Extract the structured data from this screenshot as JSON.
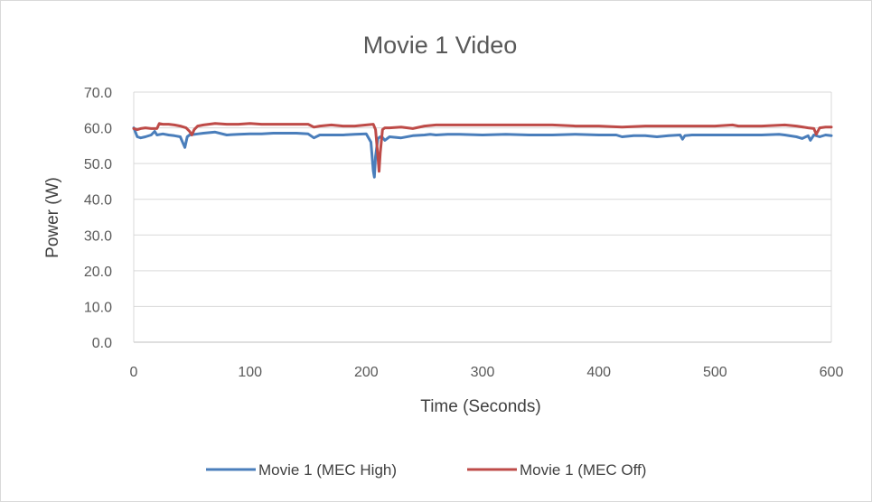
{
  "chart_data": {
    "type": "line",
    "title": "Movie 1 Video",
    "xlabel": "Time (Seconds)",
    "ylabel": "Power (W)",
    "xlim": [
      0,
      600
    ],
    "ylim": [
      0,
      70
    ],
    "xticks": [
      0,
      100,
      200,
      300,
      400,
      500,
      600
    ],
    "xtick_labels": [
      "0",
      "100",
      "200",
      "300",
      "400",
      "500",
      "600"
    ],
    "yticks": [
      0,
      10,
      20,
      30,
      40,
      50,
      60,
      70
    ],
    "ytick_labels": [
      "0.0",
      "10.0",
      "20.0",
      "30.0",
      "40.0",
      "50.0",
      "60.0",
      "70.0"
    ],
    "grid": "horizontal",
    "legend_position": "bottom",
    "series": [
      {
        "name": "Movie 1 (MEC High)",
        "color": "#4a7ebb",
        "x": [
          0,
          3,
          6,
          10,
          15,
          18,
          20,
          25,
          30,
          35,
          40,
          42,
          44,
          46,
          48,
          55,
          60,
          70,
          80,
          90,
          100,
          110,
          120,
          130,
          140,
          150,
          155,
          160,
          170,
          180,
          190,
          200,
          204,
          206,
          207,
          208,
          210,
          212,
          214,
          216,
          220,
          230,
          240,
          250,
          255,
          260,
          270,
          280,
          300,
          320,
          340,
          360,
          380,
          400,
          415,
          420,
          430,
          440,
          450,
          460,
          470,
          472,
          474,
          480,
          500,
          520,
          540,
          555,
          560,
          570,
          575,
          580,
          582,
          585,
          590,
          595,
          600
        ],
        "y": [
          60.0,
          57.5,
          57.2,
          57.5,
          58.0,
          59.0,
          58.0,
          58.3,
          58.0,
          57.8,
          57.5,
          56.0,
          54.5,
          57.5,
          58.0,
          58.3,
          58.5,
          58.8,
          58.0,
          58.2,
          58.3,
          58.3,
          58.5,
          58.5,
          58.5,
          58.3,
          57.2,
          58.0,
          58.0,
          58.0,
          58.2,
          58.3,
          56.0,
          48.0,
          46.2,
          52.0,
          57.0,
          57.5,
          57.3,
          56.5,
          57.5,
          57.2,
          57.8,
          58.0,
          58.2,
          58.0,
          58.2,
          58.2,
          58.0,
          58.2,
          58.0,
          58.0,
          58.2,
          58.0,
          58.0,
          57.5,
          57.8,
          57.8,
          57.5,
          57.8,
          58.0,
          56.8,
          57.8,
          58.0,
          58.0,
          58.0,
          58.0,
          58.2,
          58.0,
          57.5,
          57.0,
          57.8,
          56.5,
          58.0,
          57.5,
          58.0,
          57.8
        ]
      },
      {
        "name": "Movie 1 (MEC Off)",
        "color": "#be4b48",
        "x": [
          0,
          3,
          6,
          10,
          15,
          20,
          22,
          25,
          30,
          35,
          40,
          45,
          48,
          50,
          52,
          55,
          60,
          70,
          80,
          90,
          100,
          110,
          120,
          130,
          140,
          150,
          155,
          160,
          170,
          180,
          190,
          200,
          206,
          208,
          210,
          211,
          212,
          214,
          216,
          220,
          230,
          240,
          250,
          260,
          280,
          300,
          320,
          340,
          360,
          380,
          400,
          420,
          440,
          460,
          480,
          500,
          515,
          520,
          540,
          560,
          570,
          580,
          585,
          587,
          590,
          595,
          600
        ],
        "y": [
          59.8,
          59.5,
          59.8,
          60.0,
          59.8,
          59.8,
          61.2,
          61.0,
          61.0,
          60.8,
          60.5,
          60.0,
          59.0,
          58.0,
          59.5,
          60.5,
          60.8,
          61.2,
          61.0,
          61.0,
          61.2,
          61.0,
          61.0,
          61.0,
          61.0,
          61.0,
          60.2,
          60.5,
          60.8,
          60.5,
          60.5,
          60.8,
          61.0,
          59.5,
          52.0,
          47.8,
          53.0,
          59.5,
          60.0,
          60.0,
          60.2,
          59.8,
          60.5,
          60.8,
          60.8,
          60.8,
          60.8,
          60.8,
          60.8,
          60.5,
          60.5,
          60.2,
          60.5,
          60.5,
          60.5,
          60.5,
          60.8,
          60.5,
          60.5,
          60.8,
          60.5,
          60.0,
          59.8,
          58.2,
          60.0,
          60.2,
          60.2
        ]
      }
    ]
  }
}
